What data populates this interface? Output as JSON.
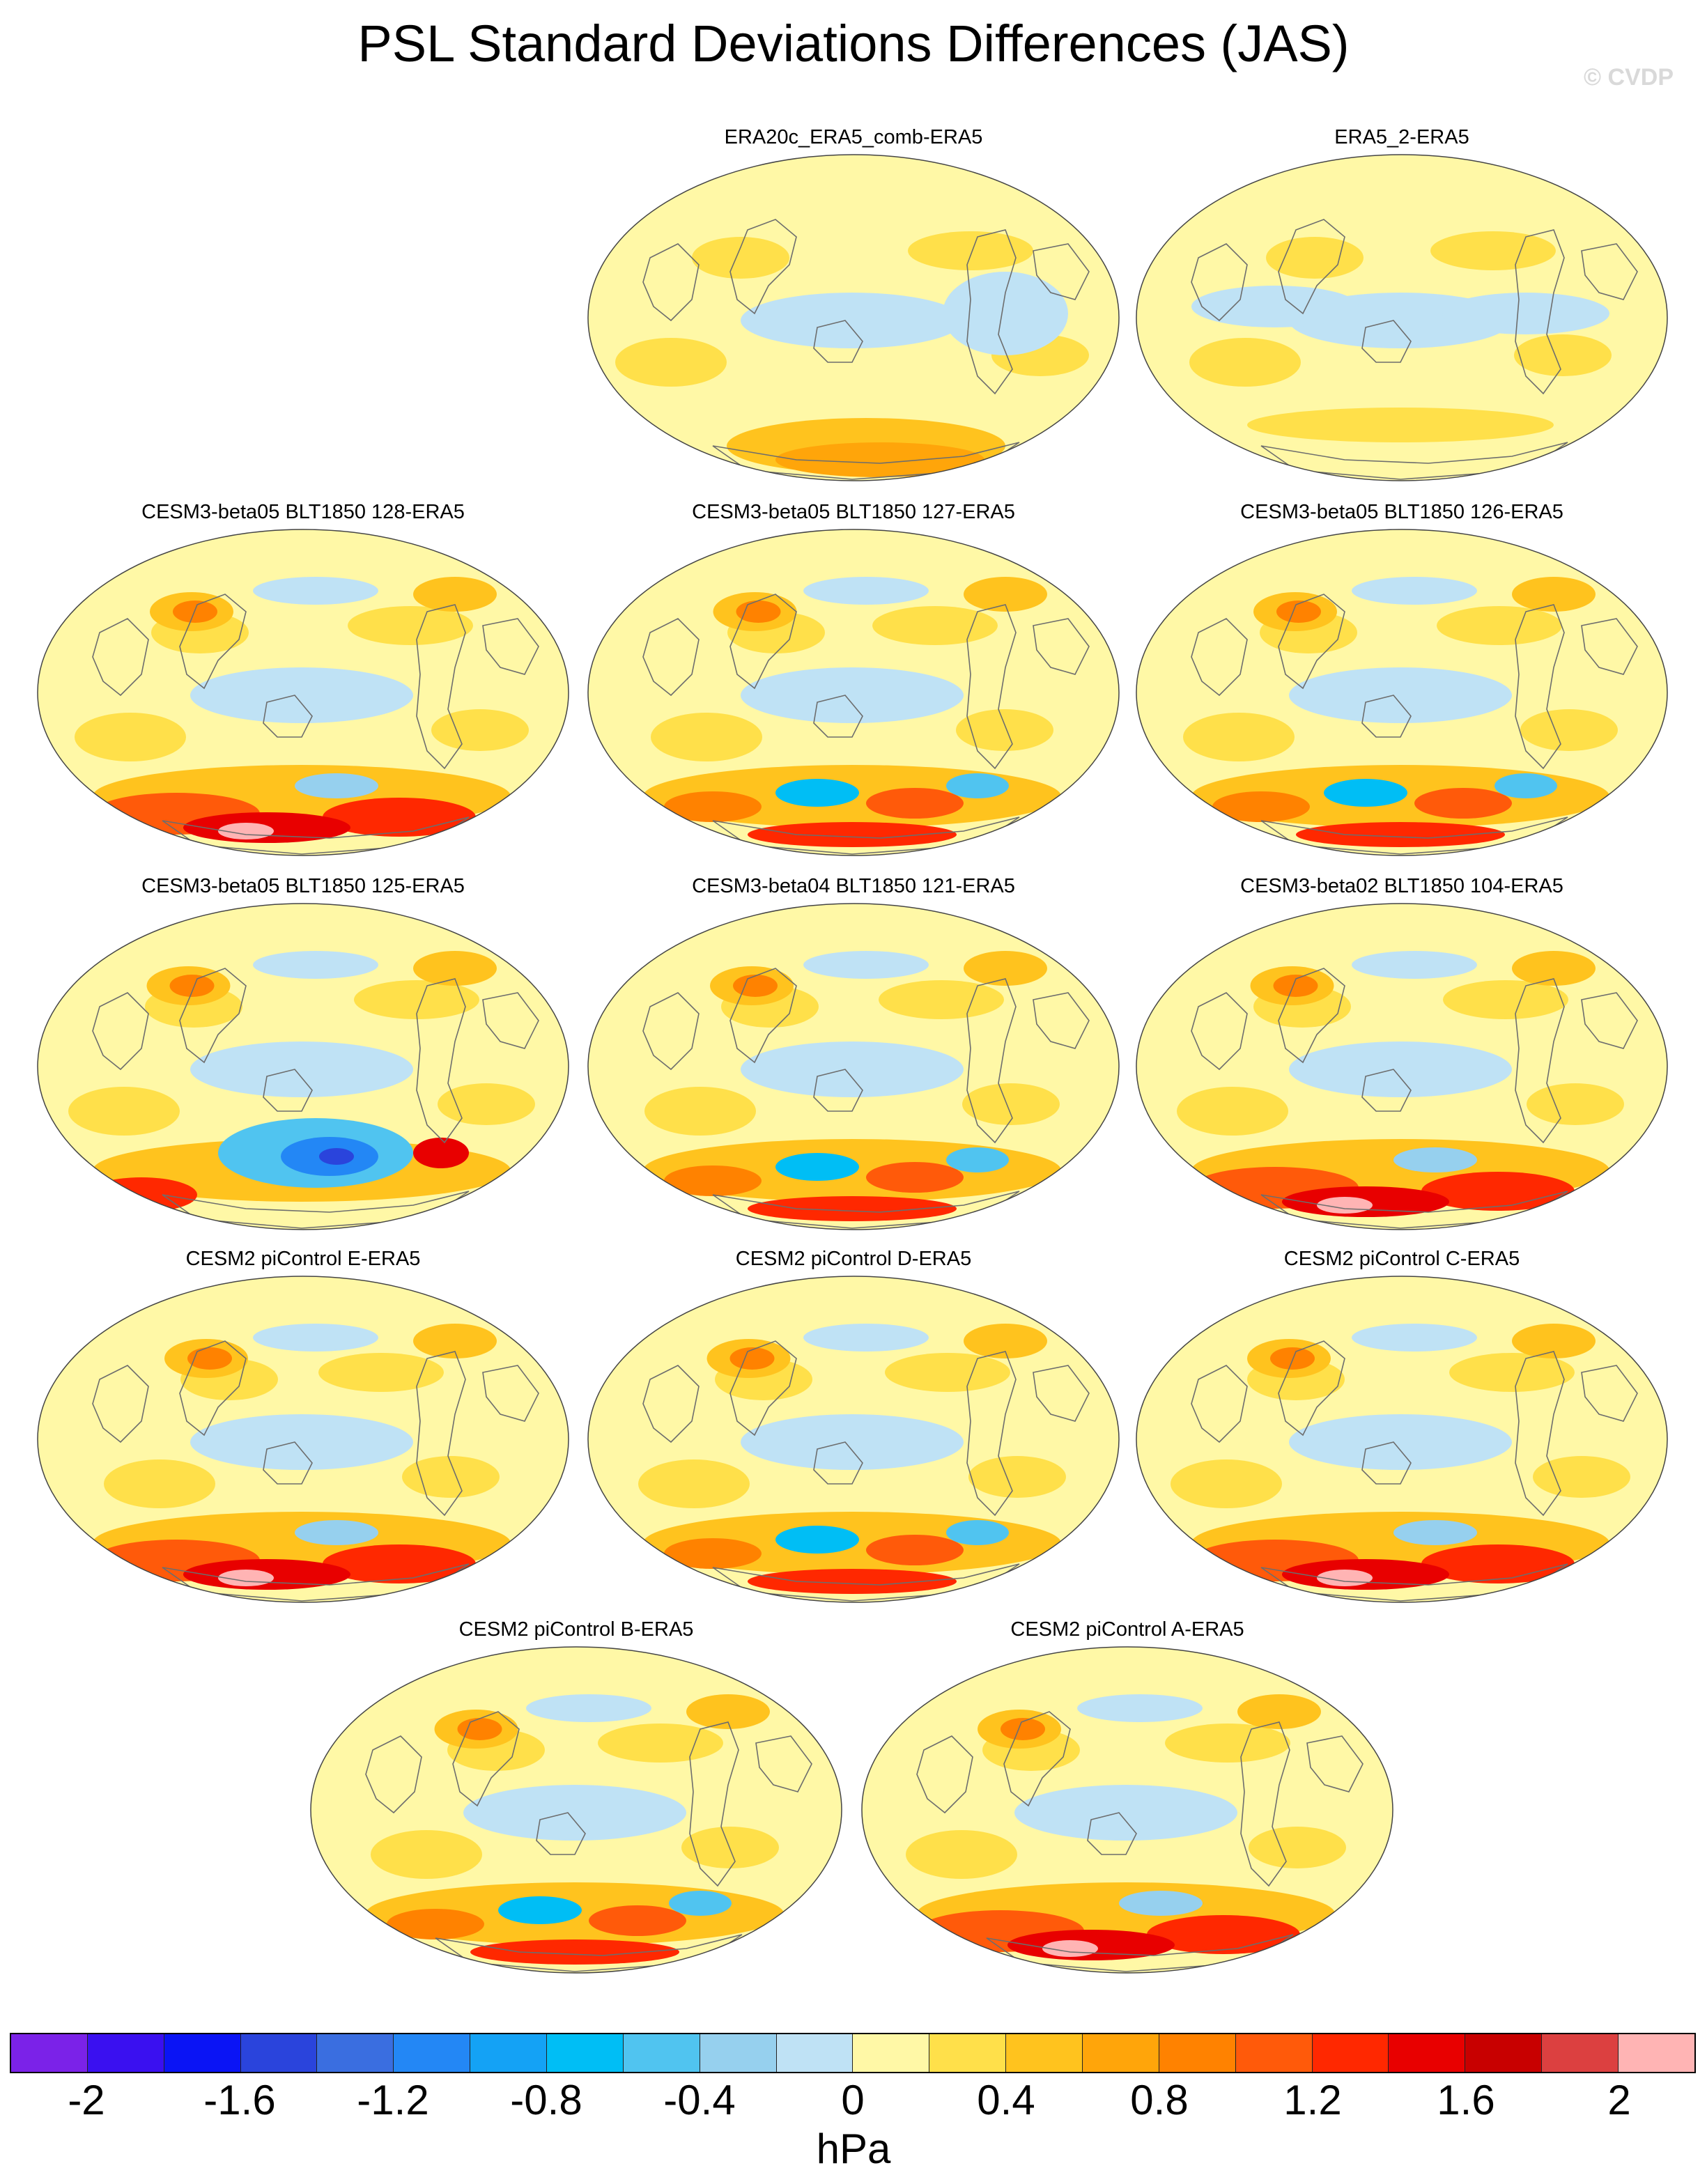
{
  "title": "PSL Standard Deviations Differences (JAS)",
  "watermark": "© CVDP",
  "panels": [
    {
      "label": "ERA20c_ERA5_comb-ERA5",
      "pattern": "weak-antarctic"
    },
    {
      "label": "ERA5_2-ERA5",
      "pattern": "near-zero"
    },
    {
      "label": "CESM3-beta05 BLT1850 128-ERA5",
      "pattern": "strong-south"
    },
    {
      "label": "CESM3-beta05 BLT1850 127-ERA5",
      "pattern": "mixed-south"
    },
    {
      "label": "CESM3-beta05 BLT1850 126-ERA5",
      "pattern": "mixed-south"
    },
    {
      "label": "CESM3-beta05 BLT1850 125-ERA5",
      "pattern": "blue-south"
    },
    {
      "label": "CESM3-beta04 BLT1850 121-ERA5",
      "pattern": "mixed-south"
    },
    {
      "label": "CESM3-beta02 BLT1850 104-ERA5",
      "pattern": "strong-south"
    },
    {
      "label": "CESM2 piControl E-ERA5",
      "pattern": "strong-south"
    },
    {
      "label": "CESM2 piControl D-ERA5",
      "pattern": "mixed-south"
    },
    {
      "label": "CESM2 piControl C-ERA5",
      "pattern": "strong-south"
    },
    {
      "label": "CESM2 piControl B-ERA5",
      "pattern": "mixed-south"
    },
    {
      "label": "CESM2 piControl A-ERA5",
      "pattern": "strong-south"
    }
  ],
  "colorbar": {
    "colors": [
      "#7b22e8",
      "#3a10f0",
      "#0a14f5",
      "#2a44dc",
      "#3a6ee0",
      "#2387f5",
      "#14a2f5",
      "#00bef5",
      "#50c4f0",
      "#96d0ee",
      "#bfe2f5",
      "#fff8a6",
      "#ffe04a",
      "#ffc31e",
      "#ffa50a",
      "#ff8200",
      "#ff5a0a",
      "#ff2800",
      "#e80000",
      "#c80000",
      "#dc4040",
      "#ffb4b4"
    ],
    "tick_labels": [
      "-2",
      "-1.6",
      "-1.2",
      "-0.8",
      "-0.4",
      "0",
      "0.4",
      "0.8",
      "1.2",
      "1.6",
      "2"
    ],
    "units": "hPa"
  }
}
